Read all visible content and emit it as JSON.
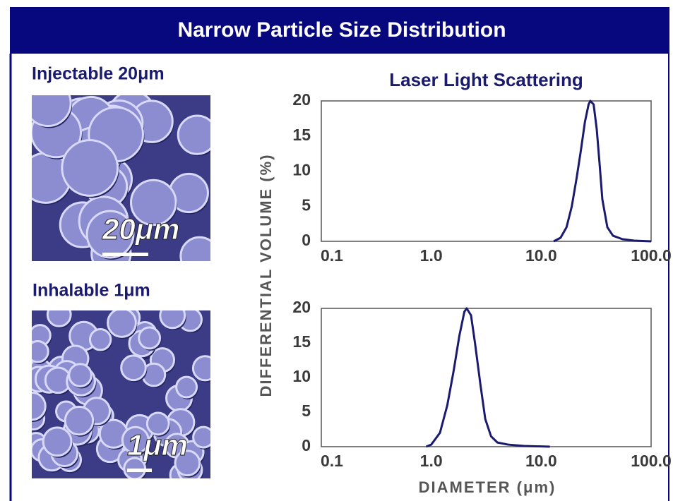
{
  "header": {
    "title": "Narrow Particle Size Distribution"
  },
  "panels": [
    {
      "label": "Injectable 20μm",
      "scale_label": "20μm"
    },
    {
      "label": "Inhalable 1μm",
      "scale_label": "1μm"
    }
  ],
  "chart_data": [
    {
      "type": "line",
      "title": "Laser Light Scattering",
      "ylabel": "DIFFERENTIAL VOLUME (%)",
      "x": [
        13,
        15,
        17,
        19,
        21,
        23,
        25,
        27,
        28,
        30,
        32,
        34,
        36,
        40,
        45,
        55,
        70,
        100
      ],
      "values": [
        0,
        0.5,
        2,
        5,
        9,
        13,
        17,
        19.5,
        20,
        19.5,
        16,
        11,
        6,
        2,
        0.8,
        0.3,
        0.1,
        0
      ],
      "color": "#1a1a6e",
      "xlog": true,
      "xlim": [
        0.1,
        100
      ],
      "xticks": [
        0.1,
        {
          "value": 1,
          "label": "1.0"
        },
        {
          "value": 10,
          "label": "10.0"
        },
        {
          "value": 100,
          "label": "100.0"
        }
      ],
      "ylim": [
        0,
        20
      ],
      "yticks": [
        0,
        5,
        10,
        15,
        20
      ]
    },
    {
      "type": "line",
      "xlabel": "DIAMETER (μm)",
      "x": [
        0.9,
        1.0,
        1.2,
        1.4,
        1.6,
        1.8,
        2.0,
        2.1,
        2.3,
        2.5,
        2.8,
        3.1,
        3.5,
        4,
        5,
        7,
        12
      ],
      "values": [
        0,
        0.3,
        2,
        6,
        11,
        16,
        19.5,
        20,
        19,
        15,
        9,
        4,
        1.5,
        0.6,
        0.3,
        0.1,
        0
      ],
      "color": "#1a1a6e",
      "xlog": true,
      "xlim": [
        0.1,
        100
      ],
      "xticks": [
        0.1,
        {
          "value": 1,
          "label": "1.0"
        },
        {
          "value": 10,
          "label": "10.0"
        },
        {
          "value": 100,
          "label": "100.0"
        }
      ],
      "ylim": [
        0,
        20
      ],
      "yticks": [
        0,
        5,
        10,
        15,
        20
      ]
    }
  ]
}
